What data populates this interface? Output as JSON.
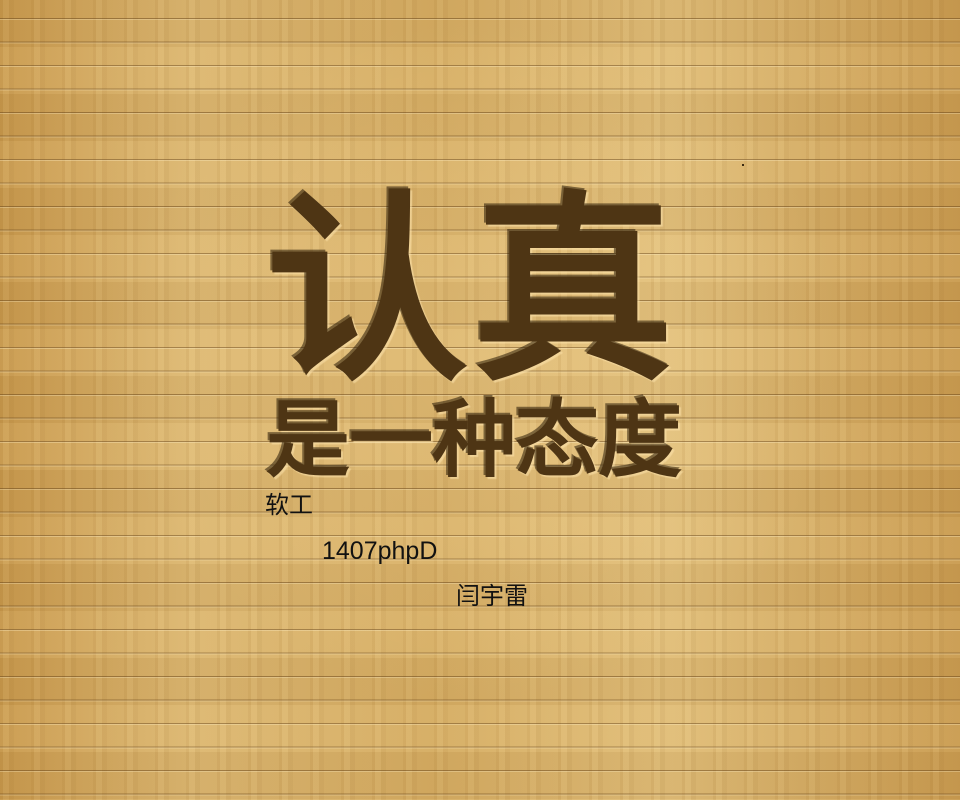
{
  "title": {
    "main": "认真",
    "sub": "是一种态度"
  },
  "notes": {
    "course": "软工",
    "class": "1407phpD",
    "name": "闫宇雷"
  },
  "colors": {
    "carved_text": "#4e3514",
    "wood_base": "#d7b069",
    "note_text": "#111111"
  }
}
